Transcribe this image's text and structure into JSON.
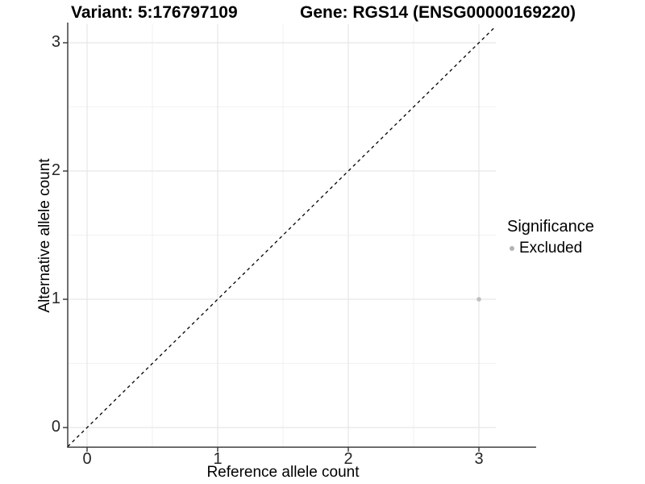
{
  "header": {
    "variant_title": "Variant: 5:176797109",
    "gene_title": "Gene: RGS14 (ENSG00000169220)"
  },
  "axes": {
    "x": {
      "label": "Reference allele count",
      "ticks": [
        0,
        1,
        2,
        3
      ],
      "minor_ticks": [
        0.5,
        1.5,
        2.5
      ]
    },
    "y": {
      "label": "Alternative allele count",
      "ticks": [
        0,
        1,
        2,
        3
      ],
      "minor_ticks": [
        0.5,
        1.5,
        2.5
      ]
    }
  },
  "legend": {
    "title": "Significance",
    "items": [
      {
        "label": "Excluded",
        "color": "#b3b3b3"
      }
    ]
  },
  "colors": {
    "background": "#ffffff",
    "axis_line": "#333333",
    "tick_mark": "#333333",
    "grid_major": "#e7e7e7",
    "grid_minor": "#f2f2f2",
    "reference_line": "#000000",
    "point": "#bfbfbf"
  },
  "chart_data": {
    "type": "scatter",
    "titles": [
      "Variant: 5:176797109",
      "Gene: RGS14 (ENSG00000169220)"
    ],
    "xlabel": "Reference allele count",
    "ylabel": "Alternative allele count",
    "xlim": [
      -0.15,
      3.15
    ],
    "ylim": [
      -0.15,
      3.15
    ],
    "x_ticks": [
      0,
      1,
      2,
      3
    ],
    "y_ticks": [
      0,
      1,
      2,
      3
    ],
    "grid": "major gridlines at integers, minor gridlines at 0.5 steps, light gray on white panel",
    "legend_position": "right",
    "legend_title": "Significance",
    "series": [
      {
        "name": "Excluded",
        "color": "#bfbfbf",
        "points": [
          {
            "x": 3,
            "y": 1
          }
        ]
      }
    ],
    "annotations": [
      {
        "type": "abline",
        "description": "y = x identity line, black dashed, spanning panel corner to corner",
        "style": "dashed",
        "color": "#000000"
      }
    ]
  }
}
